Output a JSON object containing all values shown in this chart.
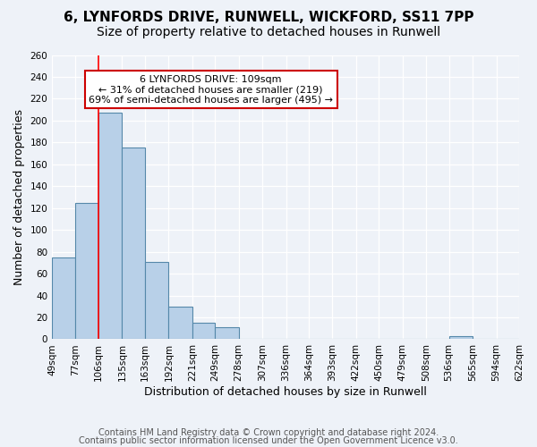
{
  "title_line1": "6, LYNFORDS DRIVE, RUNWELL, WICKFORD, SS11 7PP",
  "title_line2": "Size of property relative to detached houses in Runwell",
  "xlabel": "Distribution of detached houses by size in Runwell",
  "ylabel": "Number of detached properties",
  "bar_edges": [
    49,
    77,
    106,
    135,
    163,
    192,
    221,
    249,
    278,
    307,
    336,
    364,
    393,
    422,
    450,
    479,
    508,
    536,
    565,
    594,
    622
  ],
  "bar_heights": [
    75,
    125,
    207,
    175,
    71,
    30,
    15,
    11,
    0,
    0,
    0,
    0,
    0,
    0,
    0,
    0,
    0,
    3,
    0,
    0
  ],
  "bar_color": "#b8d0e8",
  "bar_edge_color": "#5588aa",
  "red_line_x": 106,
  "annotation_title": "6 LYNFORDS DRIVE: 109sqm",
  "annotation_line1": "← 31% of detached houses are smaller (219)",
  "annotation_line2": "69% of semi-detached houses are larger (495) →",
  "annotation_box_color": "#ffffff",
  "annotation_box_edge": "#cc0000",
  "ylim": [
    0,
    260
  ],
  "yticks": [
    0,
    20,
    40,
    60,
    80,
    100,
    120,
    140,
    160,
    180,
    200,
    220,
    240,
    260
  ],
  "tick_labels": [
    "49sqm",
    "77sqm",
    "106sqm",
    "135sqm",
    "163sqm",
    "192sqm",
    "221sqm",
    "249sqm",
    "278sqm",
    "307sqm",
    "336sqm",
    "364sqm",
    "393sqm",
    "422sqm",
    "450sqm",
    "479sqm",
    "508sqm",
    "536sqm",
    "565sqm",
    "594sqm",
    "622sqm"
  ],
  "footer_line1": "Contains HM Land Registry data © Crown copyright and database right 2024.",
  "footer_line2": "Contains public sector information licensed under the Open Government Licence v3.0.",
  "bg_color": "#eef2f8",
  "grid_color": "#ffffff",
  "title_fontsize": 11,
  "subtitle_fontsize": 10,
  "axis_label_fontsize": 9,
  "tick_fontsize": 7.5,
  "footer_fontsize": 7
}
